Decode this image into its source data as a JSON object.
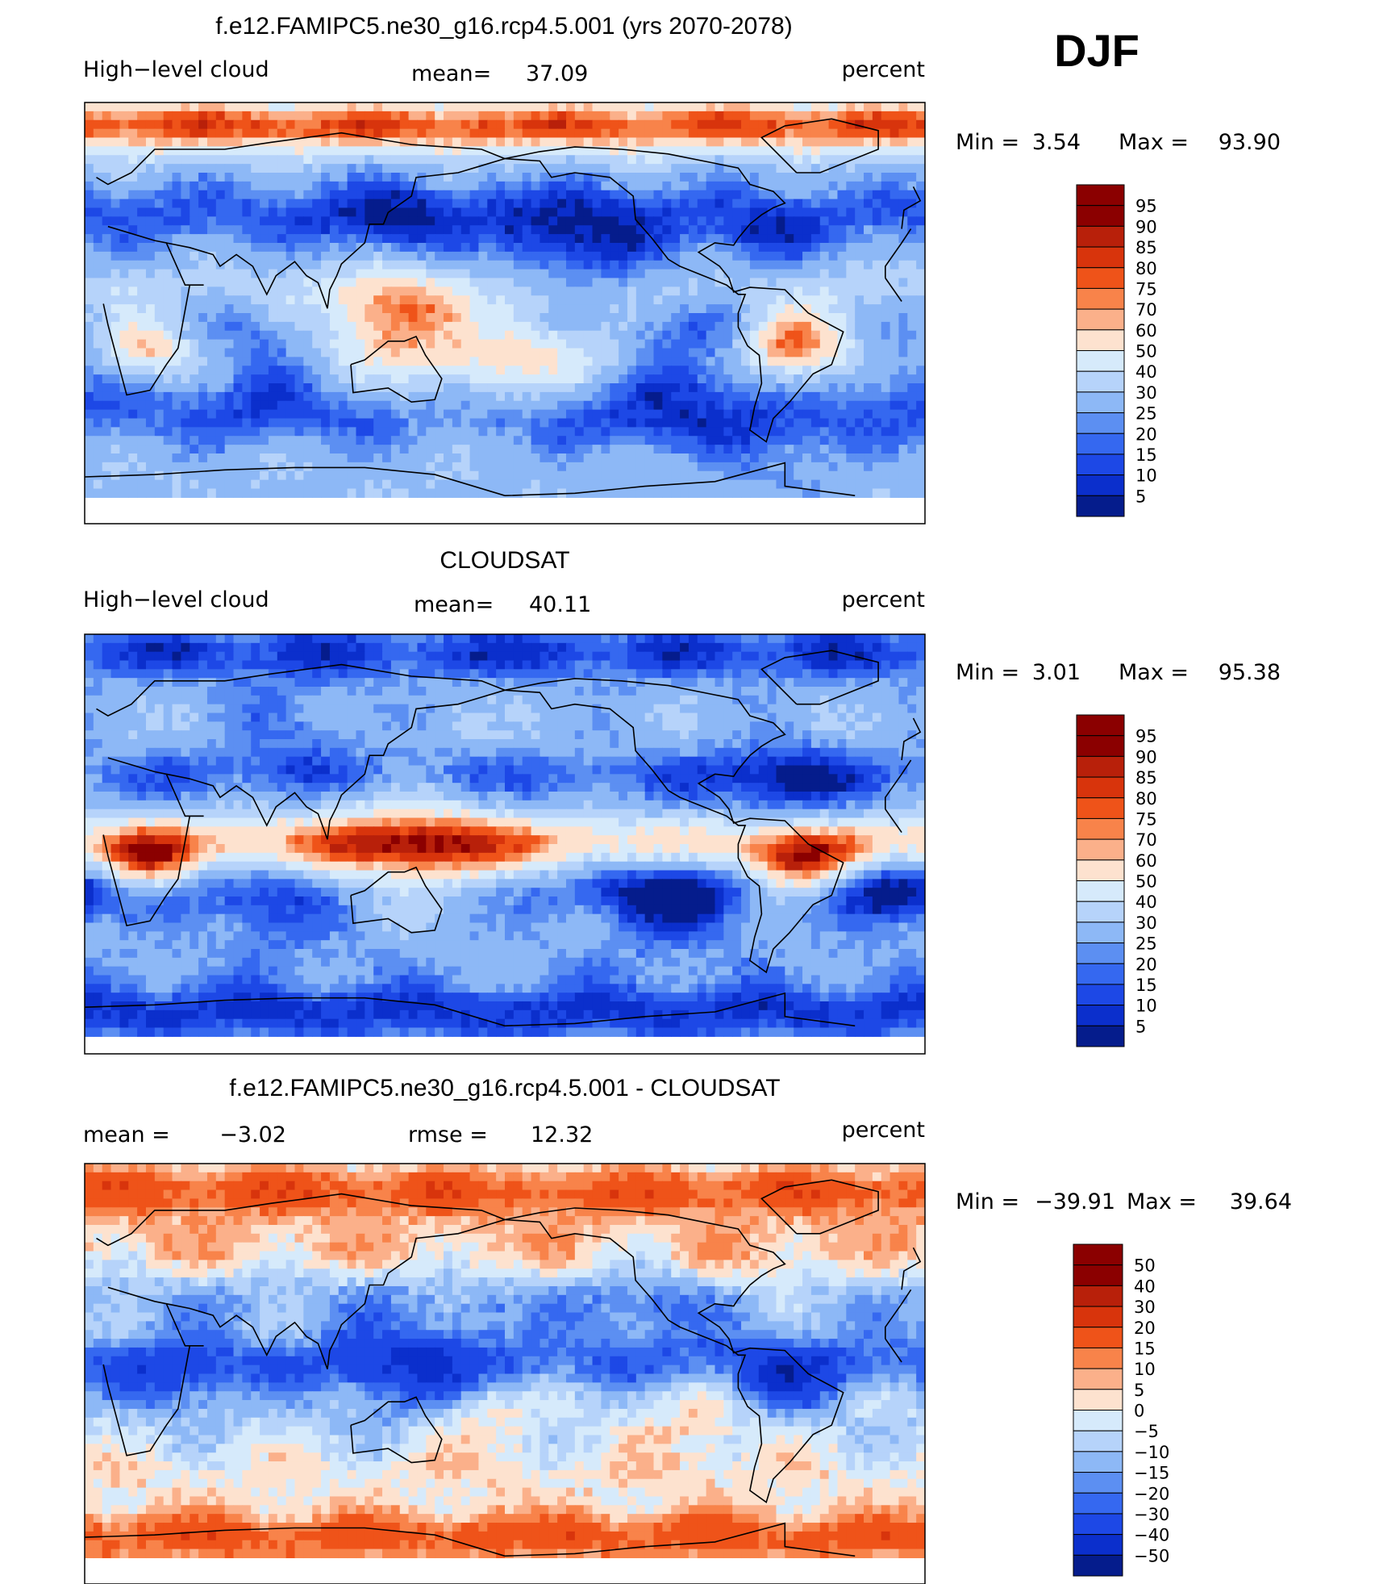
{
  "figure": {
    "season": "DJF",
    "levels_abs": [
      "95",
      "90",
      "85",
      "80",
      "75",
      "70",
      "60",
      "50",
      "40",
      "30",
      "25",
      "20",
      "15",
      "10",
      "5"
    ],
    "levels_diff": [
      "50",
      "40",
      "30",
      "20",
      "15",
      "10",
      "5",
      "0",
      "−5",
      "−10",
      "−15",
      "−20",
      "−30",
      "−40",
      "−50"
    ],
    "colors_abs": [
      "#8b0000",
      "#b8200a",
      "#d8340c",
      "#ef5319",
      "#f8834a",
      "#fbb08a",
      "#fde2cf",
      "#d6eafb",
      "#b6d3fa",
      "#8db8f6",
      "#5c8ff2",
      "#3568f0",
      "#1d48e6",
      "#0b2fcc",
      "#051c8c"
    ],
    "colors_diff": [
      "#8b0000",
      "#b8200a",
      "#d8340c",
      "#ef5319",
      "#f8834a",
      "#fbb08a",
      "#fde2cf",
      "#d6eafb",
      "#b6d3fa",
      "#8db8f6",
      "#5c8ff2",
      "#3568f0",
      "#1d48e6",
      "#0b2fcc",
      "#051c8c"
    ],
    "coast_color": "#000000"
  },
  "chart_data": [
    {
      "type": "heatmap",
      "title": "f.e12.FAMIPC5.ne30_g16.rcp4.5.001 (yrs 2070-2078)",
      "left_label": "High−level cloud",
      "mean_label": "mean=",
      "mean_value": "37.09",
      "units": "percent",
      "min_label": "Min  =",
      "min_value": "3.54",
      "max_label": "Max  =",
      "max_value": "93.90",
      "colorbar": "abs",
      "field": {
        "base": 34,
        "bands": [
          [
            80,
            50
          ],
          [
            42,
            -14
          ],
          [
            10,
            10
          ],
          [
            -20,
            14
          ],
          [
            -45,
            -10
          ],
          [
            -70,
            4
          ]
        ],
        "blobs": [
          {
            "lon": 130,
            "lat": 0,
            "r": 18,
            "amp": 38
          },
          {
            "lon": -55,
            "lat": -12,
            "r": 14,
            "amp": 42
          },
          {
            "lon": 25,
            "lat": -13,
            "r": 12,
            "amp": 32
          },
          {
            "lon": 175,
            "lat": -14,
            "r": 30,
            "amp": 18
          },
          {
            "lon": -100,
            "lat": -20,
            "r": 20,
            "amp": -24
          },
          {
            "lon": 75,
            "lat": -22,
            "r": 22,
            "amp": -22
          },
          {
            "lon": -10,
            "lat": -22,
            "r": 18,
            "amp": -20
          },
          {
            "lon": -150,
            "lat": 25,
            "r": 25,
            "amp": -22
          },
          {
            "lon": 130,
            "lat": 40,
            "r": 18,
            "amp": -16
          },
          {
            "lon": -70,
            "lat": 30,
            "r": 14,
            "amp": -16
          },
          {
            "lon": -120,
            "lat": -45,
            "r": 30,
            "amp": -8
          },
          {
            "lon": -60,
            "lat": -60,
            "r": 20,
            "amp": -10
          }
        ],
        "mask_south": -78
      }
    },
    {
      "type": "heatmap",
      "title": "CLOUDSAT",
      "left_label": "High−level cloud",
      "mean_label": "mean=",
      "mean_value": "40.11",
      "units": "percent",
      "min_label": "Min  =",
      "min_value": "3.01",
      "max_label": "Max  =",
      "max_value": "95.38",
      "colorbar": "abs",
      "field": {
        "base": 36,
        "bands": [
          [
            82,
            -20
          ],
          [
            45,
            2
          ],
          [
            30,
            -14
          ],
          [
            0,
            36
          ],
          [
            -20,
            -10
          ],
          [
            -50,
            -4
          ],
          [
            -72,
            -22
          ]
        ],
        "blobs": [
          {
            "lon": 140,
            "lat": -3,
            "r": 26,
            "amp": 30
          },
          {
            "lon": -55,
            "lat": -10,
            "r": 14,
            "amp": 42
          },
          {
            "lon": 25,
            "lat": -8,
            "r": 13,
            "amp": 36
          },
          {
            "lon": -110,
            "lat": -20,
            "r": 22,
            "amp": -28
          },
          {
            "lon": -10,
            "lat": -20,
            "r": 16,
            "amp": -26
          },
          {
            "lon": 80,
            "lat": -28,
            "r": 20,
            "amp": -14
          },
          {
            "lon": -60,
            "lat": 25,
            "r": 20,
            "amp": -18
          },
          {
            "lon": 90,
            "lat": 50,
            "r": 20,
            "amp": -12
          }
        ],
        "mask_south": -84
      }
    },
    {
      "type": "heatmap",
      "title": "f.e12.FAMIPC5.ne30_g16.rcp4.5.001 - CLOUDSAT",
      "left_label": "mean  =",
      "left_value": "−3.02",
      "mean_label": "rmse  =",
      "mean_value": "12.32",
      "units": "percent",
      "min_label": "Min  =",
      "min_value": "−39.91",
      "max_label": "Max  =",
      "max_value": "39.64",
      "colorbar": "diff",
      "field": {
        "base": 0,
        "bands": [
          [
            78,
            24
          ],
          [
            55,
            10
          ],
          [
            30,
            -8
          ],
          [
            5,
            -16
          ],
          [
            -15,
            -2
          ],
          [
            -45,
            6
          ],
          [
            -70,
            24
          ]
        ],
        "blobs": [
          {
            "lon": 140,
            "lat": 2,
            "r": 24,
            "amp": -18
          },
          {
            "lon": -60,
            "lat": -2,
            "r": 16,
            "amp": -22
          },
          {
            "lon": 40,
            "lat": -2,
            "r": 18,
            "amp": -14
          },
          {
            "lon": -100,
            "lat": -20,
            "r": 20,
            "amp": 10
          },
          {
            "lon": 170,
            "lat": -20,
            "r": 18,
            "amp": 10
          },
          {
            "lon": -120,
            "lat": 25,
            "r": 22,
            "amp": -8
          },
          {
            "lon": -70,
            "lat": 40,
            "r": 14,
            "amp": 6
          }
        ],
        "mask_south": -80
      }
    }
  ]
}
